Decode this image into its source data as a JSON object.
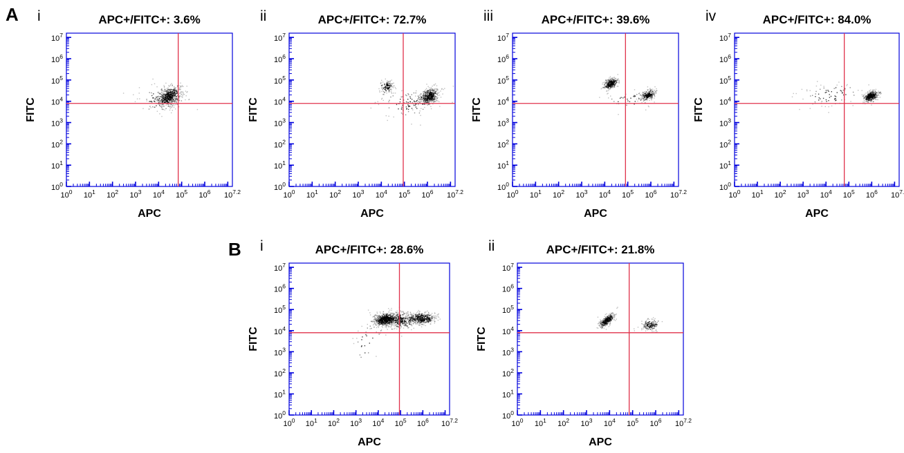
{
  "panels": {
    "A": {
      "letter": "A"
    },
    "B": {
      "letter": "B"
    }
  },
  "colors": {
    "axis": "#0000dd",
    "gate": "#e0304a",
    "event": "#000000"
  },
  "chart_data": [
    {
      "panel": "A",
      "sublabel": "i",
      "type": "scatter",
      "title": "APC+/FITC+: 3.6%",
      "xlabel": "APC",
      "ylabel": "FITC",
      "xscale": "log",
      "yscale": "log",
      "xlim": [
        0,
        7.2
      ],
      "ylim": [
        0,
        7.2
      ],
      "xticks": [
        "10^0",
        "10^1",
        "10^2",
        "10^3",
        "10^4",
        "10^5",
        "10^6",
        "10^7.2"
      ],
      "yticks": [
        "10^0",
        "10^1",
        "10^2",
        "10^3",
        "10^4",
        "10^5",
        "10^6",
        "10^7"
      ],
      "gate": {
        "x": 4.85,
        "y": 3.9
      },
      "populations": [
        {
          "cx": 4.45,
          "cy": 4.25,
          "sx": 0.28,
          "sy": 0.24,
          "rho": 0.35,
          "n": 520
        },
        {
          "cx": 4.05,
          "cy": 4.15,
          "sx": 0.55,
          "sy": 0.35,
          "rho": 0.2,
          "n": 90
        }
      ]
    },
    {
      "panel": "A",
      "sublabel": "ii",
      "type": "scatter",
      "title": "APC+/FITC+: 72.7%",
      "xlabel": "APC",
      "ylabel": "FITC",
      "xscale": "log",
      "yscale": "log",
      "xlim": [
        0,
        7.2
      ],
      "ylim": [
        0,
        7.2
      ],
      "xticks": [
        "10^0",
        "10^1",
        "10^2",
        "10^3",
        "10^4",
        "10^5",
        "10^6",
        "10^7.2"
      ],
      "yticks": [
        "10^0",
        "10^1",
        "10^2",
        "10^3",
        "10^4",
        "10^5",
        "10^6",
        "10^7"
      ],
      "gate": {
        "x": 4.95,
        "y": 3.9
      },
      "populations": [
        {
          "cx": 6.05,
          "cy": 4.25,
          "sx": 0.22,
          "sy": 0.2,
          "rho": 0.3,
          "n": 420
        },
        {
          "cx": 4.2,
          "cy": 4.7,
          "sx": 0.16,
          "sy": 0.16,
          "rho": 0.3,
          "n": 120
        },
        {
          "cx": 5.2,
          "cy": 3.9,
          "sx": 0.7,
          "sy": 0.35,
          "rho": 0.1,
          "n": 110
        }
      ]
    },
    {
      "panel": "A",
      "sublabel": "iii",
      "type": "scatter",
      "title": "APC+/FITC+: 39.6%",
      "xlabel": "APC",
      "ylabel": "FITC",
      "xscale": "log",
      "yscale": "log",
      "xlim": [
        0,
        7.2
      ],
      "ylim": [
        0,
        7.2
      ],
      "xticks": [
        "10^0",
        "10^1",
        "10^2",
        "10^3",
        "10^4",
        "10^5",
        "10^6",
        "10^7.2"
      ],
      "yticks": [
        "10^0",
        "10^1",
        "10^2",
        "10^3",
        "10^4",
        "10^5",
        "10^6",
        "10^7"
      ],
      "gate": {
        "x": 4.9,
        "y": 3.9
      },
      "populations": [
        {
          "cx": 4.25,
          "cy": 4.85,
          "sx": 0.16,
          "sy": 0.14,
          "rho": 0.4,
          "n": 300
        },
        {
          "cx": 5.85,
          "cy": 4.3,
          "sx": 0.17,
          "sy": 0.14,
          "rho": 0.45,
          "n": 220
        },
        {
          "cx": 5.1,
          "cy": 4.1,
          "sx": 0.6,
          "sy": 0.25,
          "rho": 0.1,
          "n": 40
        }
      ]
    },
    {
      "panel": "A",
      "sublabel": "iv",
      "type": "scatter",
      "title": "APC+/FITC+: 84.0%",
      "xlabel": "APC",
      "ylabel": "FITC",
      "xscale": "log",
      "yscale": "log",
      "xlim": [
        0,
        7.2
      ],
      "ylim": [
        0,
        7.2
      ],
      "xticks": [
        "10^0",
        "10^1",
        "10^2",
        "10^3",
        "10^4",
        "10^5",
        "10^6",
        "10^7.2"
      ],
      "yticks": [
        "10^0",
        "10^1",
        "10^2",
        "10^3",
        "10^4",
        "10^5",
        "10^6",
        "10^7"
      ],
      "gate": {
        "x": 4.8,
        "y": 3.9
      },
      "populations": [
        {
          "cx": 5.95,
          "cy": 4.25,
          "sx": 0.16,
          "sy": 0.13,
          "rho": 0.35,
          "n": 380
        },
        {
          "cx": 4.2,
          "cy": 4.3,
          "sx": 0.7,
          "sy": 0.3,
          "rho": 0.2,
          "n": 90
        }
      ]
    },
    {
      "panel": "B",
      "sublabel": "i",
      "type": "scatter",
      "title": "APC+/FITC+: 28.6%",
      "xlabel": "APC",
      "ylabel": "FITC",
      "xscale": "log",
      "yscale": "log",
      "xlim": [
        0,
        7.2
      ],
      "ylim": [
        0,
        7.2
      ],
      "xticks": [
        "10^0",
        "10^1",
        "10^2",
        "10^3",
        "10^4",
        "10^5",
        "10^6",
        "10^7.2"
      ],
      "yticks": [
        "10^0",
        "10^1",
        "10^2",
        "10^3",
        "10^4",
        "10^5",
        "10^6",
        "10^7"
      ],
      "gate": {
        "x": 4.95,
        "y": 3.9
      },
      "populations": [
        {
          "cx": 4.3,
          "cy": 4.55,
          "sx": 0.28,
          "sy": 0.16,
          "rho": 0.2,
          "n": 650
        },
        {
          "cx": 5.9,
          "cy": 4.6,
          "sx": 0.35,
          "sy": 0.14,
          "rho": 0.1,
          "n": 420
        },
        {
          "cx": 5.0,
          "cy": 4.5,
          "sx": 0.4,
          "sy": 0.2,
          "rho": 0.0,
          "n": 260
        },
        {
          "cx": 3.5,
          "cy": 3.5,
          "sx": 0.4,
          "sy": 0.55,
          "rho": 0.5,
          "n": 40
        }
      ]
    },
    {
      "panel": "B",
      "sublabel": "ii",
      "type": "scatter",
      "title": "APC+/FITC+: 21.8%",
      "xlabel": "APC",
      "ylabel": "FITC",
      "xscale": "log",
      "yscale": "log",
      "xlim": [
        0,
        7.2
      ],
      "ylim": [
        0,
        7.2
      ],
      "xticks": [
        "10^0",
        "10^1",
        "10^2",
        "10^3",
        "10^4",
        "10^5",
        "10^6",
        "10^7.2"
      ],
      "yticks": [
        "10^0",
        "10^1",
        "10^2",
        "10^3",
        "10^4",
        "10^5",
        "10^6",
        "10^7"
      ],
      "gate": {
        "x": 4.85,
        "y": 3.9
      },
      "populations": [
        {
          "cx": 3.85,
          "cy": 4.5,
          "sx": 0.17,
          "sy": 0.16,
          "rho": 0.7,
          "n": 330
        },
        {
          "cx": 5.75,
          "cy": 4.3,
          "sx": 0.2,
          "sy": 0.15,
          "rho": 0.1,
          "n": 140
        }
      ]
    }
  ]
}
